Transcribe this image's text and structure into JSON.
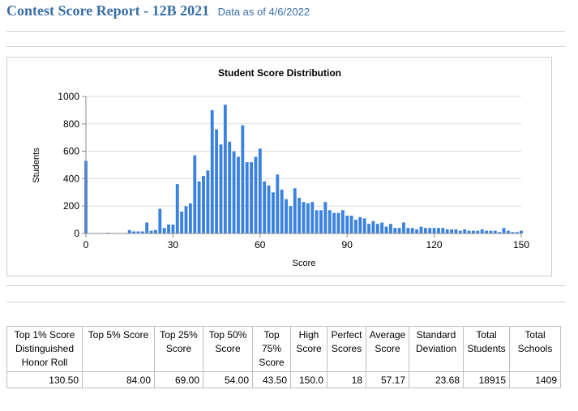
{
  "header": {
    "title": "Contest Score Report -  12B 2021",
    "subtitle": "Data as of 4/6/2022"
  },
  "chart_data": {
    "type": "bar",
    "title": "Student Score Distribution",
    "xlabel": "Score",
    "ylabel": "Students",
    "xlim": [
      0,
      150
    ],
    "ylim": [
      0,
      1000
    ],
    "xticks": [
      0,
      30,
      60,
      90,
      120,
      150
    ],
    "yticks": [
      0,
      200,
      400,
      600,
      800,
      1000
    ],
    "grid": true,
    "bar_color": "#3b82e0",
    "x": [
      0,
      1.5,
      3,
      4.5,
      6,
      7.5,
      9,
      10.5,
      12,
      13.5,
      15,
      16.5,
      18,
      19.5,
      21,
      22.5,
      24,
      25.5,
      27,
      28.5,
      30,
      31.5,
      33,
      34.5,
      36,
      37.5,
      39,
      40.5,
      42,
      43.5,
      45,
      46.5,
      48,
      49.5,
      51,
      52.5,
      54,
      55.5,
      57,
      58.5,
      60,
      61.5,
      63,
      64.5,
      66,
      67.5,
      69,
      70.5,
      72,
      73.5,
      75,
      76.5,
      78,
      79.5,
      81,
      82.5,
      84,
      85.5,
      87,
      88.5,
      90,
      91.5,
      93,
      94.5,
      96,
      97.5,
      99,
      100.5,
      102,
      103.5,
      105,
      106.5,
      108,
      109.5,
      111,
      112.5,
      114,
      115.5,
      117,
      118.5,
      120,
      121.5,
      123,
      124.5,
      126,
      127.5,
      129,
      130.5,
      132,
      133.5,
      135,
      136.5,
      138,
      139.5,
      141,
      142.5,
      144,
      145.5,
      147,
      148.5,
      150
    ],
    "values": [
      530,
      0,
      0,
      0,
      0,
      5,
      0,
      0,
      0,
      0,
      25,
      15,
      15,
      15,
      80,
      20,
      25,
      180,
      40,
      65,
      65,
      360,
      160,
      200,
      220,
      570,
      380,
      420,
      460,
      900,
      760,
      650,
      940,
      670,
      600,
      560,
      790,
      520,
      520,
      560,
      620,
      380,
      350,
      300,
      430,
      320,
      250,
      200,
      330,
      260,
      230,
      220,
      230,
      170,
      170,
      230,
      170,
      150,
      150,
      170,
      130,
      130,
      100,
      120,
      110,
      70,
      90,
      70,
      80,
      50,
      70,
      40,
      40,
      80,
      40,
      40,
      30,
      50,
      40,
      40,
      40,
      40,
      40,
      30,
      30,
      30,
      20,
      30,
      20,
      20,
      20,
      30,
      20,
      20,
      20,
      10,
      40,
      20,
      10,
      10,
      20
    ]
  },
  "table": {
    "headers": [
      "Top 1% Score Distinguished Honor Roll",
      "Top 5% Score",
      "Top 25% Score",
      "Top 50% Score",
      "Top 75% Score",
      "High Score",
      "Perfect Scores",
      "Average Score",
      "Standard Deviation",
      "Total Students",
      "Total Schools"
    ],
    "values": [
      "130.50",
      "84.00",
      "69.00",
      "54.00",
      "43.50",
      "150.0",
      "18",
      "57.17",
      "23.68",
      "18915",
      "1409"
    ]
  }
}
